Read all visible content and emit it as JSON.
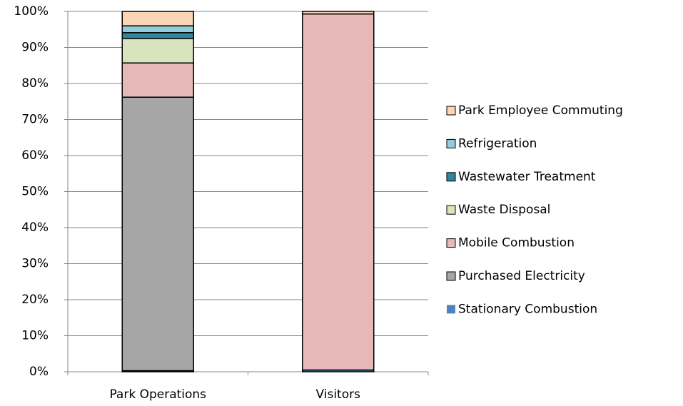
{
  "chart_data": {
    "type": "stacked_bar",
    "categories": [
      "Park Operations",
      "Visitors"
    ],
    "series": [
      {
        "name": "Stationary Combustion",
        "color": "#4f81bd",
        "values": [
          0.3,
          0.5
        ]
      },
      {
        "name": "Purchased Electricity",
        "color": "#a6a6a6",
        "values": [
          75.9,
          0
        ]
      },
      {
        "name": "Mobile Combustion",
        "color": "#e6b9b8",
        "values": [
          9.5,
          98.8
        ]
      },
      {
        "name": "Waste Disposal",
        "color": "#d7e4bd",
        "values": [
          6.8,
          0
        ]
      },
      {
        "name": "Wastewater Treatment",
        "color": "#31859c",
        "values": [
          1.6,
          0
        ]
      },
      {
        "name": "Refrigeration",
        "color": "#93cddd",
        "values": [
          1.9,
          0
        ]
      },
      {
        "name": "Park Employee Commuting",
        "color": "#fcd5b5",
        "values": [
          4.0,
          0.7
        ]
      }
    ],
    "ylim": [
      0,
      100
    ],
    "yticks": [
      {
        "value": 0,
        "label": "0%"
      },
      {
        "value": 10,
        "label": "10%"
      },
      {
        "value": 20,
        "label": "20%"
      },
      {
        "value": 30,
        "label": "30%"
      },
      {
        "value": 40,
        "label": "40%"
      },
      {
        "value": 50,
        "label": "50%"
      },
      {
        "value": 60,
        "label": "60%"
      },
      {
        "value": 70,
        "label": "70%"
      },
      {
        "value": 80,
        "label": "80%"
      },
      {
        "value": 90,
        "label": "90%"
      },
      {
        "value": 100,
        "label": "100%"
      }
    ],
    "grid": true,
    "legend": "right"
  }
}
